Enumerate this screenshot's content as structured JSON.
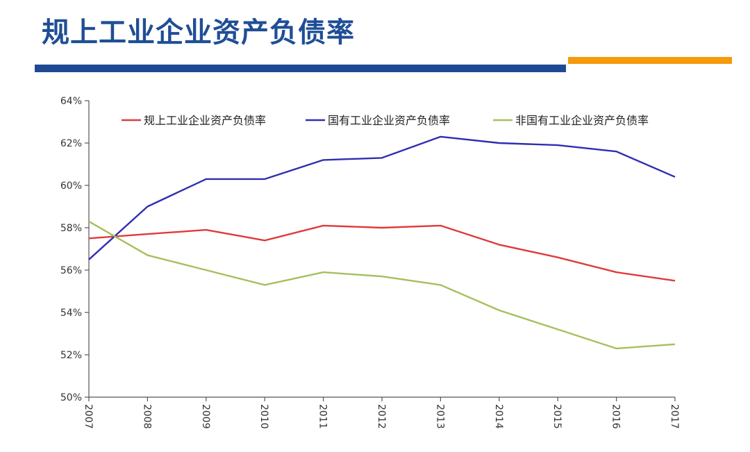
{
  "slide": {
    "title": "规上工业企业资产负债率"
  },
  "colors": {
    "title": "#1f4e96",
    "bar_blue": "#1f4a93",
    "bar_orange": "#f59a0c"
  },
  "chart_data": {
    "type": "line",
    "title": "",
    "xlabel": "",
    "ylabel": "",
    "x": [
      "2007",
      "2008",
      "2009",
      "2010",
      "2011",
      "2012",
      "2013",
      "2014",
      "2015",
      "2016",
      "2017"
    ],
    "ylim": [
      50,
      64
    ],
    "y_ticks": [
      50,
      52,
      54,
      56,
      58,
      60,
      62,
      64
    ],
    "y_tick_labels": [
      "50%",
      "52%",
      "54%",
      "56%",
      "58%",
      "60%",
      "62%",
      "64%"
    ],
    "grid": false,
    "legend_position": "top",
    "series": [
      {
        "name": "规上工业企业资产负债率",
        "color": "#e03a3a",
        "values": [
          57.5,
          57.7,
          57.9,
          57.4,
          58.1,
          58.0,
          58.1,
          57.2,
          56.6,
          55.9,
          55.5
        ]
      },
      {
        "name": "国有工业企业资产负债率",
        "color": "#2e2fb0",
        "values": [
          56.5,
          59.0,
          60.3,
          60.3,
          61.2,
          61.3,
          62.3,
          62.0,
          61.9,
          61.6,
          60.4
        ]
      },
      {
        "name": "非国有工业企业资产负债率",
        "color": "#a6bf5e",
        "values": [
          58.3,
          56.7,
          56.0,
          55.3,
          55.9,
          55.7,
          55.3,
          54.1,
          53.2,
          52.3,
          52.5
        ]
      }
    ]
  }
}
